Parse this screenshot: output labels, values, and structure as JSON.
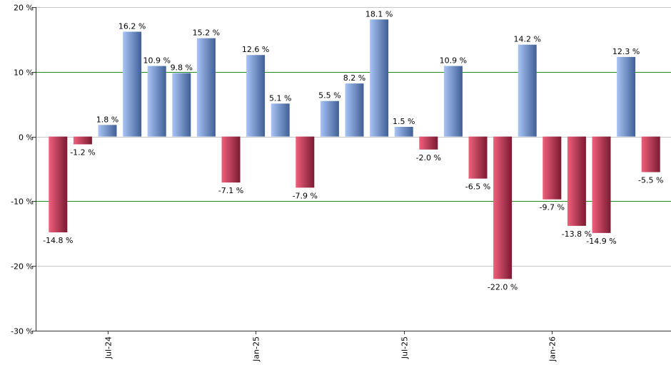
{
  "chart_data": {
    "type": "bar",
    "ylim": [
      -30,
      20
    ],
    "yticks": [
      -30,
      -20,
      -10,
      0,
      10,
      20
    ],
    "ytick_labels": [
      "-30 %",
      "-20 %",
      "-10 %",
      "0 %",
      "10 %",
      "20 %"
    ],
    "highlight_gridlines": [
      10,
      -10
    ],
    "x_tick_labels": [
      {
        "label": "Jul-24",
        "index": 2
      },
      {
        "label": "Jan-25",
        "index": 8
      },
      {
        "label": "Jul-25",
        "index": 14
      },
      {
        "label": "Jan-26",
        "index": 20
      }
    ],
    "values": [
      -14.8,
      -1.2,
      1.8,
      16.2,
      10.9,
      9.8,
      15.2,
      -7.1,
      12.6,
      5.1,
      -7.9,
      5.5,
      8.2,
      18.1,
      1.5,
      -2.0,
      10.9,
      -6.5,
      -22.0,
      14.2,
      -9.7,
      -13.8,
      -14.9,
      12.3,
      -5.5
    ],
    "labels": [
      "-14.8 %",
      "-1.2 %",
      "1.8 %",
      "16.2 %",
      "10.9 %",
      "9.8 %",
      "15.2 %",
      "-7.1 %",
      "12.6 %",
      "5.1 %",
      "-7.9 %",
      "5.5 %",
      "8.2 %",
      "18.1 %",
      "1.5 %",
      "-2.0 %",
      "10.9 %",
      "-6.5 %",
      "-22.0 %",
      "14.2 %",
      "-9.7 %",
      "-13.8 %",
      "-14.9 %",
      "12.3 %",
      "-5.5 %"
    ],
    "colors": {
      "positive_light": "#a9c4f5",
      "positive_dark": "#3f5f96",
      "negative_light": "#f0607c",
      "negative_dark": "#7a1a32",
      "grid": "#c8c8c8",
      "highlight_grid": "#1f8a1f",
      "axis": "#333333"
    },
    "grid": true
  }
}
